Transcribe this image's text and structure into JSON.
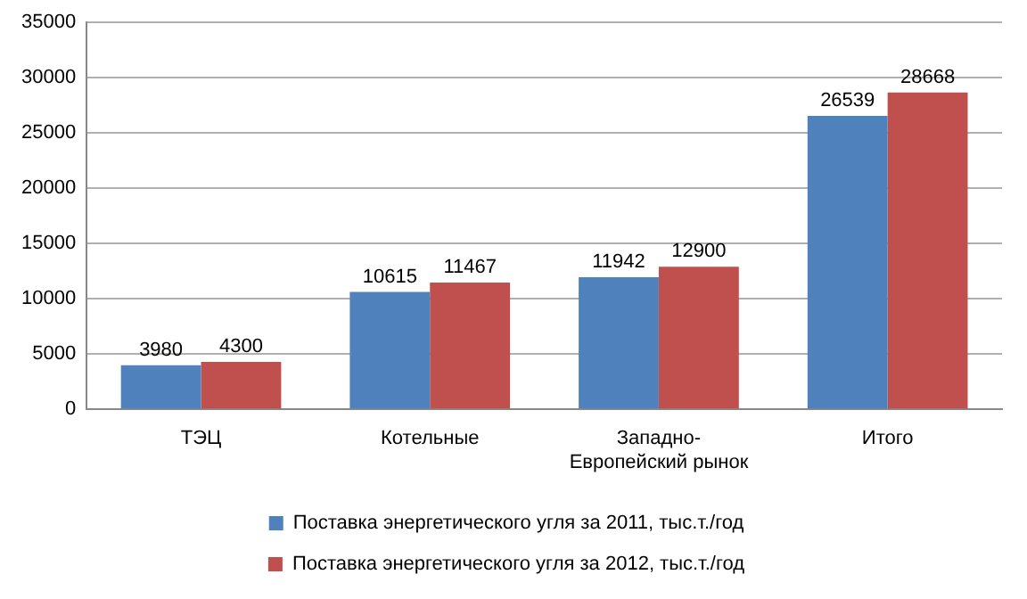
{
  "chart_data": {
    "type": "bar",
    "categories": [
      "ТЭЦ",
      "Котельные",
      "Западно-Европейский рынок",
      "Итого"
    ],
    "series": [
      {
        "name": "Поставка энергетического угля за 2011, тыс.т./год",
        "color": "#4f81bd",
        "values": [
          3980,
          10615,
          11942,
          26539
        ]
      },
      {
        "name": "Поставка энергетического угля за 2012, тыс.т./год",
        "color": "#c0504d",
        "values": [
          4300,
          11467,
          12900,
          28668
        ]
      }
    ],
    "ylim": [
      0,
      35000
    ],
    "yticks": [
      0,
      5000,
      10000,
      15000,
      20000,
      25000,
      30000,
      35000
    ],
    "grid": "y",
    "legend": "bottom",
    "data_labels": true
  }
}
